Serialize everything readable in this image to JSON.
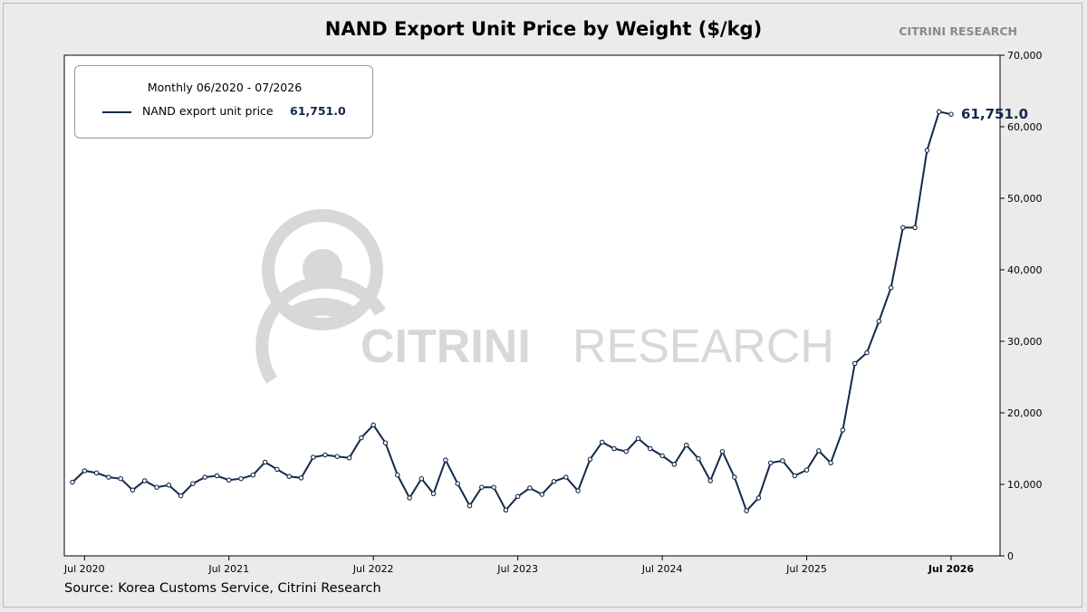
{
  "header": {
    "title": "NAND Export Unit Price by Weight ($/kg)",
    "brand": "CITRINI RESEARCH"
  },
  "footer": {
    "source": "Source: Korea Customs Service, Citrini Research"
  },
  "watermark": {
    "text_bold": "CITRINI",
    "text_light": "RESEARCH",
    "color": "#d8d8d8"
  },
  "legend": {
    "title": "Monthly 06/2020 - 07/2026",
    "label": "NAND export unit price",
    "value": "61,751.0"
  },
  "end_label": "61,751.0",
  "colors": {
    "line": "#13294b",
    "background": "#ebebeb",
    "plot": "#ffffff"
  },
  "chart_data": {
    "type": "line",
    "title": "NAND Export Unit Price by Weight ($/kg)",
    "xlabel": "",
    "ylabel": "",
    "ylim": [
      0,
      70000
    ],
    "yticks": [
      0,
      10000,
      20000,
      30000,
      40000,
      50000,
      60000,
      70000
    ],
    "ytick_labels": [
      "0",
      "10,000",
      "20,000",
      "30,000",
      "40,000",
      "50,000",
      "60,000",
      "70,000"
    ],
    "xticks": [
      {
        "label": "Jul 2020",
        "x": "2020-07",
        "bold": false
      },
      {
        "label": "Jul 2021",
        "x": "2021-07",
        "bold": false
      },
      {
        "label": "Jul 2022",
        "x": "2022-07",
        "bold": false
      },
      {
        "label": "Jul 2023",
        "x": "2023-07",
        "bold": false
      },
      {
        "label": "Jul 2024",
        "x": "2024-07",
        "bold": false
      },
      {
        "label": "Jul 2025",
        "x": "2025-07",
        "bold": false
      },
      {
        "label": "Jul 2026",
        "x": "2026-07",
        "bold": true
      }
    ],
    "grid": false,
    "legend_position": "top-left",
    "y_axis_side": "right",
    "series": [
      {
        "name": "NAND export unit price",
        "x": [
          "2020-06",
          "2020-07",
          "2020-08",
          "2020-09",
          "2020-10",
          "2020-11",
          "2020-12",
          "2021-01",
          "2021-02",
          "2021-03",
          "2021-04",
          "2021-05",
          "2021-06",
          "2021-07",
          "2021-08",
          "2021-09",
          "2021-10",
          "2021-11",
          "2021-12",
          "2022-01",
          "2022-02",
          "2022-03",
          "2022-04",
          "2022-05",
          "2022-06",
          "2022-07",
          "2022-08",
          "2022-09",
          "2022-10",
          "2022-11",
          "2022-12",
          "2023-01",
          "2023-02",
          "2023-03",
          "2023-04",
          "2023-05",
          "2023-06",
          "2023-07",
          "2023-08",
          "2023-09",
          "2023-10",
          "2023-11",
          "2023-12",
          "2024-01",
          "2024-02",
          "2024-03",
          "2024-04",
          "2024-05",
          "2024-06",
          "2024-07",
          "2024-08",
          "2024-09",
          "2024-10",
          "2024-11",
          "2024-12",
          "2025-01",
          "2025-02",
          "2025-03",
          "2025-04",
          "2025-05",
          "2025-06",
          "2025-07",
          "2025-08",
          "2025-09",
          "2025-10",
          "2025-11",
          "2025-12",
          "2026-01",
          "2026-02",
          "2026-03",
          "2026-04",
          "2026-05",
          "2026-06",
          "2026-07"
        ],
        "values": [
          10300,
          11900,
          11600,
          11000,
          10800,
          9200,
          10500,
          9600,
          9900,
          8400,
          10100,
          11000,
          11200,
          10600,
          10800,
          11300,
          13100,
          12100,
          11100,
          10900,
          13800,
          14100,
          13900,
          13700,
          16500,
          18300,
          15800,
          11300,
          8100,
          10800,
          8700,
          13400,
          10100,
          7000,
          9600,
          9600,
          6400,
          8300,
          9500,
          8600,
          10400,
          11000,
          9100,
          13500,
          15900,
          15000,
          14600,
          16400,
          15000,
          14000,
          12800,
          15500,
          13600,
          10500,
          14600,
          11000,
          6300,
          8100,
          13000,
          13300,
          11200,
          12000,
          14700,
          13000,
          17600,
          26900,
          28400,
          32800,
          37500,
          45900,
          45900,
          56700,
          62100,
          61751
        ]
      }
    ]
  }
}
